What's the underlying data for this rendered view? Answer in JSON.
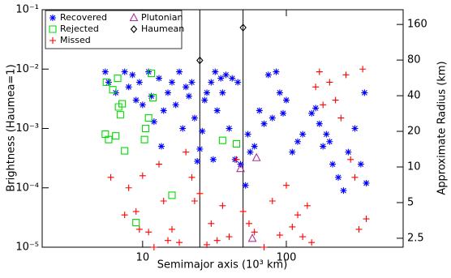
{
  "chart_data": {
    "type": "scatter",
    "xlabel": "Semimajor axis (10³ km)",
    "ylabel": "Brightness (Haumea=1)",
    "y2label": "Approximate Radius (km)",
    "xscale": "log",
    "yscale": "log",
    "y2scale": "log",
    "xlim": [
      2,
      650
    ],
    "ylim": [
      1e-05,
      0.1
    ],
    "y2lim": [
      2.1,
      213
    ],
    "xticks": [
      10,
      100
    ],
    "yticks": [
      {
        "value": 0.1,
        "label": "10⁻¹"
      },
      {
        "value": 0.01,
        "label": "10⁻²"
      },
      {
        "value": 0.001,
        "label": "10⁻³"
      },
      {
        "value": 0.0001,
        "label": "10⁻⁴"
      },
      {
        "value": 1e-05,
        "label": "10⁻⁵"
      }
    ],
    "y2ticks": [
      160,
      80,
      40,
      20,
      10,
      5,
      2.5
    ],
    "vlines": [
      25,
      50
    ],
    "legend": "upper left",
    "series": [
      {
        "name": "Recovered",
        "color": "#0000ff",
        "marker": "asterisk",
        "x": [
          5.5,
          5.8,
          6.5,
          7.5,
          8,
          8.5,
          9,
          9.5,
          10,
          11,
          11.5,
          12,
          13,
          13.5,
          14,
          15,
          16,
          17,
          18,
          19,
          20,
          21,
          22,
          23,
          24,
          25,
          26,
          27,
          28,
          30,
          31,
          32,
          33,
          35,
          36,
          38,
          40,
          42,
          44,
          46,
          48,
          52,
          54,
          56,
          60,
          65,
          70,
          75,
          80,
          85,
          90,
          95,
          100,
          110,
          120,
          130,
          150,
          160,
          170,
          180,
          190,
          200,
          210,
          230,
          250,
          270,
          300,
          330,
          350,
          360
        ],
        "y": [
          0.009,
          0.006,
          0.004,
          0.009,
          0.005,
          0.008,
          0.003,
          0.006,
          0.0025,
          0.009,
          0.0035,
          0.0013,
          0.007,
          0.0005,
          0.002,
          0.004,
          0.006,
          0.0025,
          0.009,
          0.001,
          0.005,
          0.0035,
          0.006,
          0.0015,
          0.00028,
          0.00045,
          0.0009,
          0.003,
          0.004,
          0.006,
          0.0003,
          0.009,
          0.002,
          0.007,
          0.004,
          0.008,
          0.001,
          0.007,
          0.0003,
          0.006,
          0.00025,
          0.00011,
          0.0008,
          0.0004,
          0.0005,
          0.002,
          0.0012,
          0.008,
          0.0015,
          0.009,
          0.004,
          0.0018,
          0.003,
          0.0004,
          0.0006,
          0.0008,
          0.0018,
          0.0022,
          0.0012,
          0.0005,
          0.0008,
          0.0006,
          0.00025,
          0.00015,
          9e-05,
          0.0004,
          0.001,
          0.00025,
          0.004,
          0.00012
        ]
      },
      {
        "name": "Rejected",
        "color": "#00dd00",
        "marker": "square",
        "x": [
          5.5,
          5.6,
          5.8,
          6.2,
          6.5,
          6.7,
          6.8,
          7.0,
          7.2,
          7.5,
          9.0,
          10.5,
          11.0,
          11.5,
          11.8,
          16,
          36,
          45,
          10.3
        ],
        "y": [
          0.0008,
          0.006,
          0.00065,
          0.0045,
          0.00075,
          0.007,
          0.0023,
          0.0017,
          0.0026,
          0.00042,
          2.6e-05,
          0.001,
          0.0015,
          0.0085,
          0.0033,
          7.5e-05,
          0.00063,
          0.00055,
          0.00065
        ]
      },
      {
        "name": "Missed",
        "color": "#ff0000",
        "marker": "plus",
        "x": [
          6,
          8,
          9,
          9.5,
          10,
          11,
          12,
          13,
          14,
          15,
          16,
          18,
          20,
          22,
          25,
          28,
          30,
          33,
          36,
          40,
          45,
          50,
          55,
          60,
          70,
          80,
          90,
          100,
          110,
          120,
          130,
          140,
          150,
          160,
          170,
          180,
          200,
          220,
          240,
          260,
          280,
          300,
          320,
          340,
          360,
          7.5,
          23
        ],
        "y": [
          0.00015,
          0.0001,
          4e-05,
          2e-05,
          0.00016,
          1.8e-05,
          1e-05,
          0.00025,
          6e-05,
          1.3e-05,
          2e-05,
          1.2e-05,
          0.0004,
          0.00015,
          8e-05,
          1.1e-05,
          2.5e-05,
          1.3e-05,
          5e-05,
          1.5e-05,
          0.0003,
          4e-05,
          2.5e-05,
          1.8e-05,
          1e-05,
          6e-05,
          1.6e-05,
          0.00011,
          2.2e-05,
          3.5e-05,
          1.5e-05,
          5e-05,
          1.2e-05,
          0.005,
          0.009,
          0.0025,
          0.006,
          0.003,
          0.0015,
          0.008,
          0.0003,
          0.00015,
          2e-05,
          0.01,
          3e-05,
          3.5e-05,
          6e-05
        ]
      },
      {
        "name": "Plutonian",
        "color": "#b0309a",
        "marker": "triangle",
        "x": [
          48,
          62,
          58
        ],
        "y": [
          0.00021,
          0.00032,
          1.4e-05
        ]
      },
      {
        "name": "Haumean",
        "color": "#000000",
        "marker": "diamond",
        "x": [
          25,
          50
        ],
        "y": [
          0.014,
          0.05
        ]
      }
    ]
  }
}
